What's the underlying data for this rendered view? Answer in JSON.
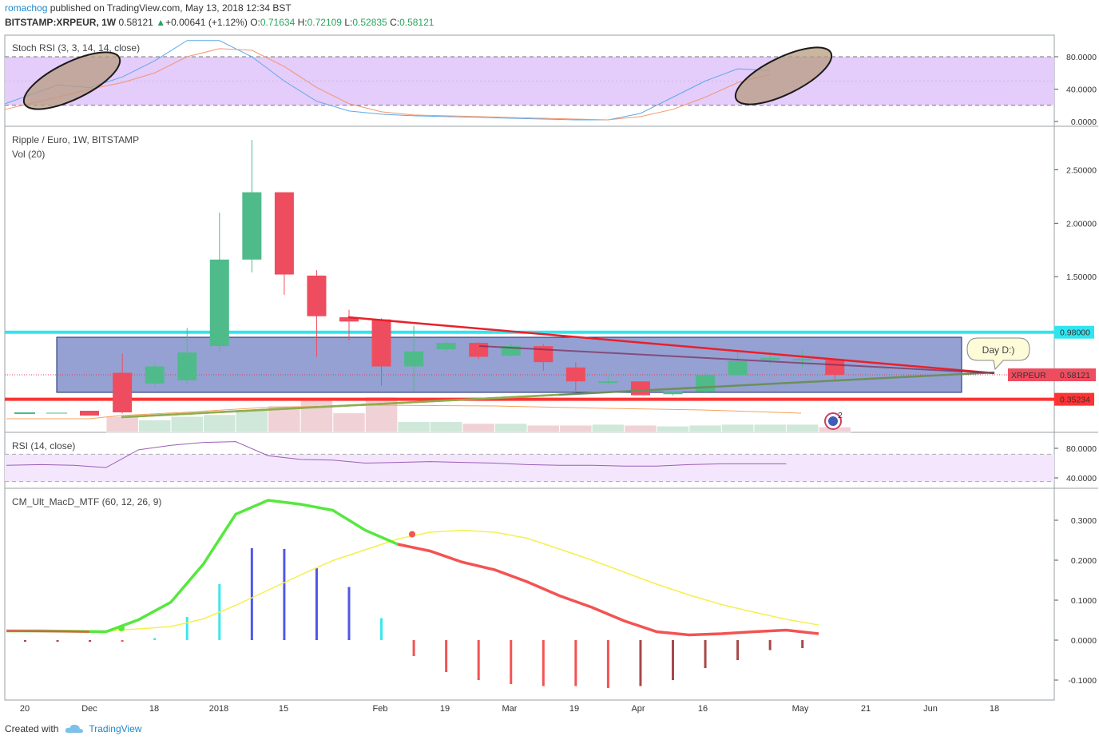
{
  "header": {
    "author": "romachog",
    "published_text": "published on TradingView.com, May 13, 2018 12:34 BST",
    "symbol": "BITSTAMP:XRPEUR",
    "interval": "1W",
    "last": "0.58121",
    "change_arrow": "▲",
    "change": "+0.00641 (+1.12%)",
    "o_label": "O:",
    "o": "0.71634",
    "h_label": "H:",
    "h": "0.72109",
    "l_label": "L:",
    "l": "0.52835",
    "c_label": "C:",
    "c": "0.58121"
  },
  "footer": {
    "created_with": "Created with",
    "brand": "TradingView"
  },
  "colors": {
    "up": "#4fbb8a",
    "down": "#ee4d5f",
    "volume_up": "#cfe8d9",
    "volume_down": "#f0d2d6",
    "cyan_line": "#30e5f0",
    "red_line": "#ff3333",
    "zone": "#5468b7",
    "stoch_band": "#e4ccfb",
    "rsi_band": "#f3e6fd",
    "macd_fast": "#55e83d",
    "macd_slow": "#f4f04d",
    "macd_red": "#f35352"
  },
  "chart_data": [
    {
      "type": "line",
      "title": "Stoch RSI (3, 3, 14, 14, close)",
      "ylim": [
        0,
        100
      ],
      "y_ticks": [
        "80.0000",
        "40.0000",
        "0.0000"
      ],
      "bands": [
        20,
        80
      ],
      "x": [
        0,
        1,
        2,
        3,
        4,
        5,
        6,
        7,
        8,
        9,
        10,
        11,
        12,
        13,
        14,
        15,
        16,
        17,
        18,
        19,
        20,
        21,
        22,
        23,
        24
      ],
      "series": [
        {
          "name": "K",
          "values": [
            22,
            45,
            42,
            55,
            75,
            100,
            100,
            80,
            50,
            25,
            13,
            9,
            7,
            6,
            5,
            4,
            3,
            2,
            2,
            10,
            30,
            50,
            65,
            63,
            null
          ]
        },
        {
          "name": "D",
          "values": [
            15,
            30,
            40,
            48,
            60,
            80,
            90,
            88,
            68,
            42,
            22,
            12,
            8,
            7,
            6,
            5,
            4,
            3,
            2,
            6,
            15,
            30,
            48,
            58,
            null
          ]
        }
      ],
      "annotations": [
        "ellipse around weeks 1-4",
        "ellipse around weeks 22-24"
      ]
    },
    {
      "type": "candlestick",
      "title": "Ripple / Euro, 1W, BITSTAMP",
      "subtitle": "Vol (20)",
      "ylim": [
        0.3,
        2.9
      ],
      "y_ticks": [
        "2.50000",
        "2.00000",
        "1.50000",
        "0.98000",
        "0.58121",
        "0.35234"
      ],
      "x_ticks": [
        "20",
        "Dec",
        "18",
        "2018",
        "15",
        "Feb",
        "19",
        "Mar",
        "19",
        "Apr",
        "16",
        "May",
        "21",
        "Jun",
        "18"
      ],
      "candles": [
        {
          "o": 0.6,
          "h": 0.78,
          "l": 0.22,
          "c": 0.23
        },
        {
          "o": 0.5,
          "h": 0.68,
          "l": 0.48,
          "c": 0.66
        },
        {
          "o": 0.53,
          "h": 1.02,
          "l": 0.5,
          "c": 0.79
        },
        {
          "o": 0.85,
          "h": 2.1,
          "l": 0.8,
          "c": 1.66
        },
        {
          "o": 1.66,
          "h": 2.78,
          "l": 1.54,
          "c": 2.29
        },
        {
          "o": 2.29,
          "h": 2.29,
          "l": 1.33,
          "c": 1.52
        },
        {
          "o": 1.51,
          "h": 1.56,
          "l": 0.75,
          "c": 1.13
        },
        {
          "o": 1.12,
          "h": 1.19,
          "l": 0.9,
          "c": 1.08
        },
        {
          "o": 1.1,
          "h": 1.11,
          "l": 0.48,
          "c": 0.66
        },
        {
          "o": 0.66,
          "h": 1.04,
          "l": 0.43,
          "c": 0.8
        },
        {
          "o": 0.82,
          "h": 0.9,
          "l": 0.79,
          "c": 0.88
        },
        {
          "o": 0.88,
          "h": 0.89,
          "l": 0.73,
          "c": 0.75
        },
        {
          "o": 0.76,
          "h": 0.87,
          "l": 0.75,
          "c": 0.85
        },
        {
          "o": 0.85,
          "h": 0.87,
          "l": 0.62,
          "c": 0.7
        },
        {
          "o": 0.65,
          "h": 0.7,
          "l": 0.43,
          "c": 0.52
        },
        {
          "o": 0.51,
          "h": 0.57,
          "l": 0.49,
          "c": 0.52
        },
        {
          "o": 0.52,
          "h": 0.52,
          "l": 0.39,
          "c": 0.39
        },
        {
          "o": 0.4,
          "h": 0.42,
          "l": 0.39,
          "c": 0.42
        },
        {
          "o": 0.42,
          "h": 0.6,
          "l": 0.41,
          "c": 0.58
        },
        {
          "o": 0.58,
          "h": 0.8,
          "l": 0.57,
          "c": 0.71
        },
        {
          "o": 0.72,
          "h": 0.8,
          "l": 0.68,
          "c": 0.74
        },
        {
          "o": 0.73,
          "h": 0.81,
          "l": 0.65,
          "c": 0.73
        },
        {
          "o": 0.72,
          "h": 0.72,
          "l": 0.53,
          "c": 0.58
        }
      ],
      "volume": [
        18,
        14,
        18,
        20,
        25,
        30,
        36,
        22,
        40,
        12,
        12,
        10,
        10,
        8,
        8,
        9,
        8,
        7,
        8,
        9,
        9,
        9,
        6
      ],
      "levels": [
        0.98,
        0.35234
      ],
      "current_price": "0.58121",
      "symbol_label": "XRPEUR",
      "callout": "Day D:)",
      "alert_count": "2"
    },
    {
      "type": "line",
      "title": "RSI (14, close)",
      "ylim": [
        30,
        90
      ],
      "y_ticks": [
        "80.0000",
        "40.0000"
      ],
      "bands": [
        35,
        72
      ],
      "values": [
        57,
        58,
        57,
        54,
        78,
        84,
        88,
        89,
        70,
        65,
        64,
        60,
        61,
        62,
        61,
        60,
        58,
        57,
        57,
        56,
        56,
        58,
        59,
        59,
        59,
        56
      ]
    },
    {
      "type": "line",
      "title": "CM_Ult_MacD_MTF (60, 12, 26, 9)",
      "ylim": [
        -0.15,
        0.37
      ],
      "y_ticks": [
        "0.3000",
        "0.2000",
        "0.1000",
        "0.0000",
        "-0.1000"
      ],
      "series": [
        {
          "name": "MACD",
          "values": [
            0.023,
            0.023,
            0.022,
            0.021,
            0.051,
            0.095,
            0.19,
            0.315,
            0.35,
            0.34,
            0.325,
            0.275,
            0.24
          ]
        },
        {
          "name": "Signal",
          "values": [
            0.025,
            0.025,
            0.024,
            0.023,
            0.028,
            0.034,
            0.053,
            0.087,
            0.125,
            0.163,
            0.199,
            0.226,
            0.253,
            0.27,
            0.275,
            0.27,
            0.255,
            0.228,
            0.2,
            0.17,
            0.14,
            0.113,
            0.089,
            0.07,
            0.052,
            0.038
          ]
        },
        {
          "name": "MACD tail",
          "values": [
            0.24,
            0.223,
            0.195,
            0.176,
            0.146,
            0.111,
            0.082,
            0.048,
            0.021,
            0.013,
            0.016,
            0.021,
            0.025,
            0.016
          ]
        }
      ],
      "histogram": [
        -0.004,
        -0.003,
        -0.002,
        0.0,
        0.005,
        0.058,
        0.14,
        0.23,
        0.228,
        0.18,
        0.133,
        0.055,
        -0.04,
        -0.08,
        -0.1,
        -0.11,
        -0.115,
        -0.115,
        -0.12,
        -0.115,
        -0.1,
        -0.07,
        -0.05,
        -0.025,
        -0.02
      ]
    }
  ]
}
